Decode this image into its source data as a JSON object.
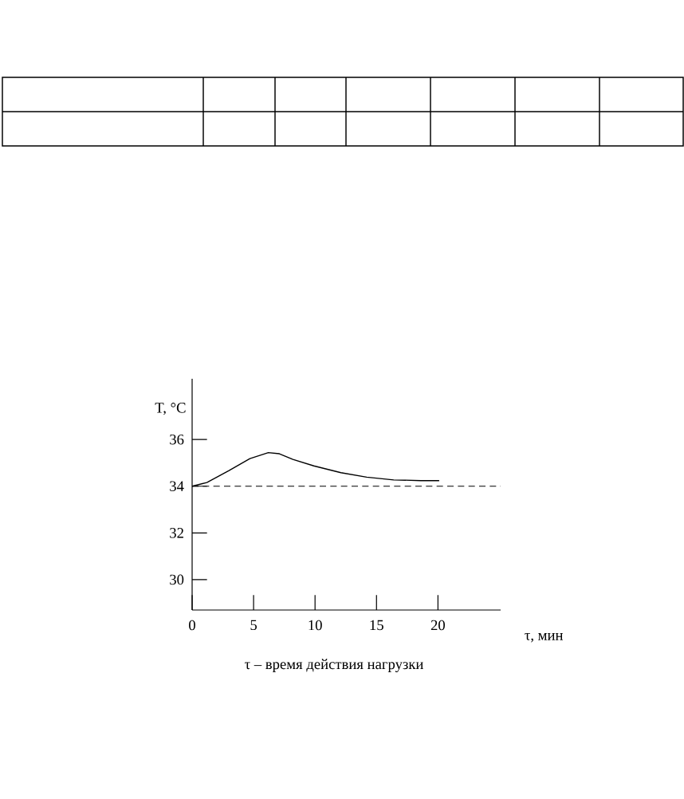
{
  "chart_data": {
    "type": "line",
    "xlabel": "τ, мин",
    "ylabel": "T, °C",
    "annotations": [
      "τ – время действия нагрузки"
    ],
    "x": [
      0,
      1.2,
      3.0,
      4.7,
      6.2,
      7.1,
      8.2,
      9.9,
      12.1,
      14.2,
      16.4,
      18.6,
      20.1
    ],
    "series": [
      {
        "color": "#000000",
        "values": [
          34.0,
          34.16,
          34.67,
          35.18,
          35.44,
          35.39,
          35.15,
          34.87,
          34.58,
          34.39,
          34.27,
          34.24,
          34.24
        ]
      }
    ],
    "ref_lines": [
      {
        "axis": "y",
        "value": 34,
        "line_style": "dashed",
        "color": "#000000"
      }
    ],
    "xlim": [
      0,
      25.1
    ],
    "ylim": [
      28.7,
      38.6
    ],
    "xticks": [
      0,
      5,
      10,
      15,
      20
    ],
    "yticks": [
      30,
      32,
      34,
      36
    ],
    "line_style": "solid",
    "marker": "none"
  }
}
